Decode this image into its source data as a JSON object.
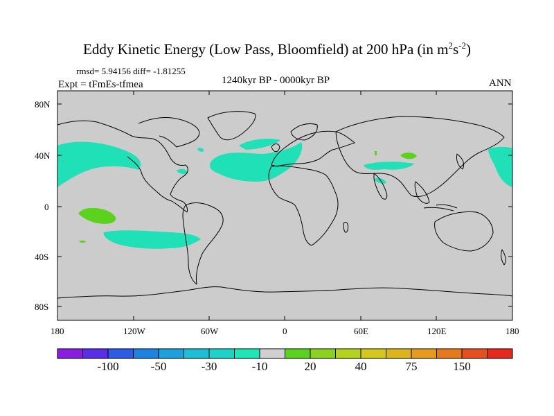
{
  "title": {
    "main": "Eddy Kinetic Energy (Low Pass, Bloomfield) at 200 hPa (in m",
    "sup1": "2",
    "mid": "s",
    "sup2": "-2",
    "end": ")"
  },
  "stats": "rmsd= 5.94156 diff= -1.81255",
  "expt": "Expt = tFmEs-tfmea",
  "period": "1240kyr BP - 0000kyr BP",
  "season": "ANN",
  "lat_ticks": [
    "80N",
    "40N",
    "0",
    "40S",
    "80S"
  ],
  "lon_ticks": [
    "180",
    "120W",
    "60W",
    "0",
    "60E",
    "120E",
    "180"
  ],
  "colorbar": {
    "colors": [
      "#8a1ee0",
      "#5a2ee8",
      "#2e5ae6",
      "#1e82e0",
      "#1ea0dc",
      "#1ebed6",
      "#1ed2c8",
      "#1ee6b4",
      "#d0d0d0",
      "#5ad21e",
      "#8ad21e",
      "#b4d21e",
      "#d2c81e",
      "#dcb41e",
      "#e69a1e",
      "#e6781e",
      "#e6501e",
      "#e6281e"
    ],
    "labels": [
      "-100",
      "-50",
      "-30",
      "-10",
      "20",
      "40",
      "75",
      "150"
    ]
  },
  "colors": {
    "land_ocean": "#cccccc",
    "negative_fill": "#20e0b8",
    "positive_fill": "#5ad21e",
    "coastline": "#000000"
  }
}
